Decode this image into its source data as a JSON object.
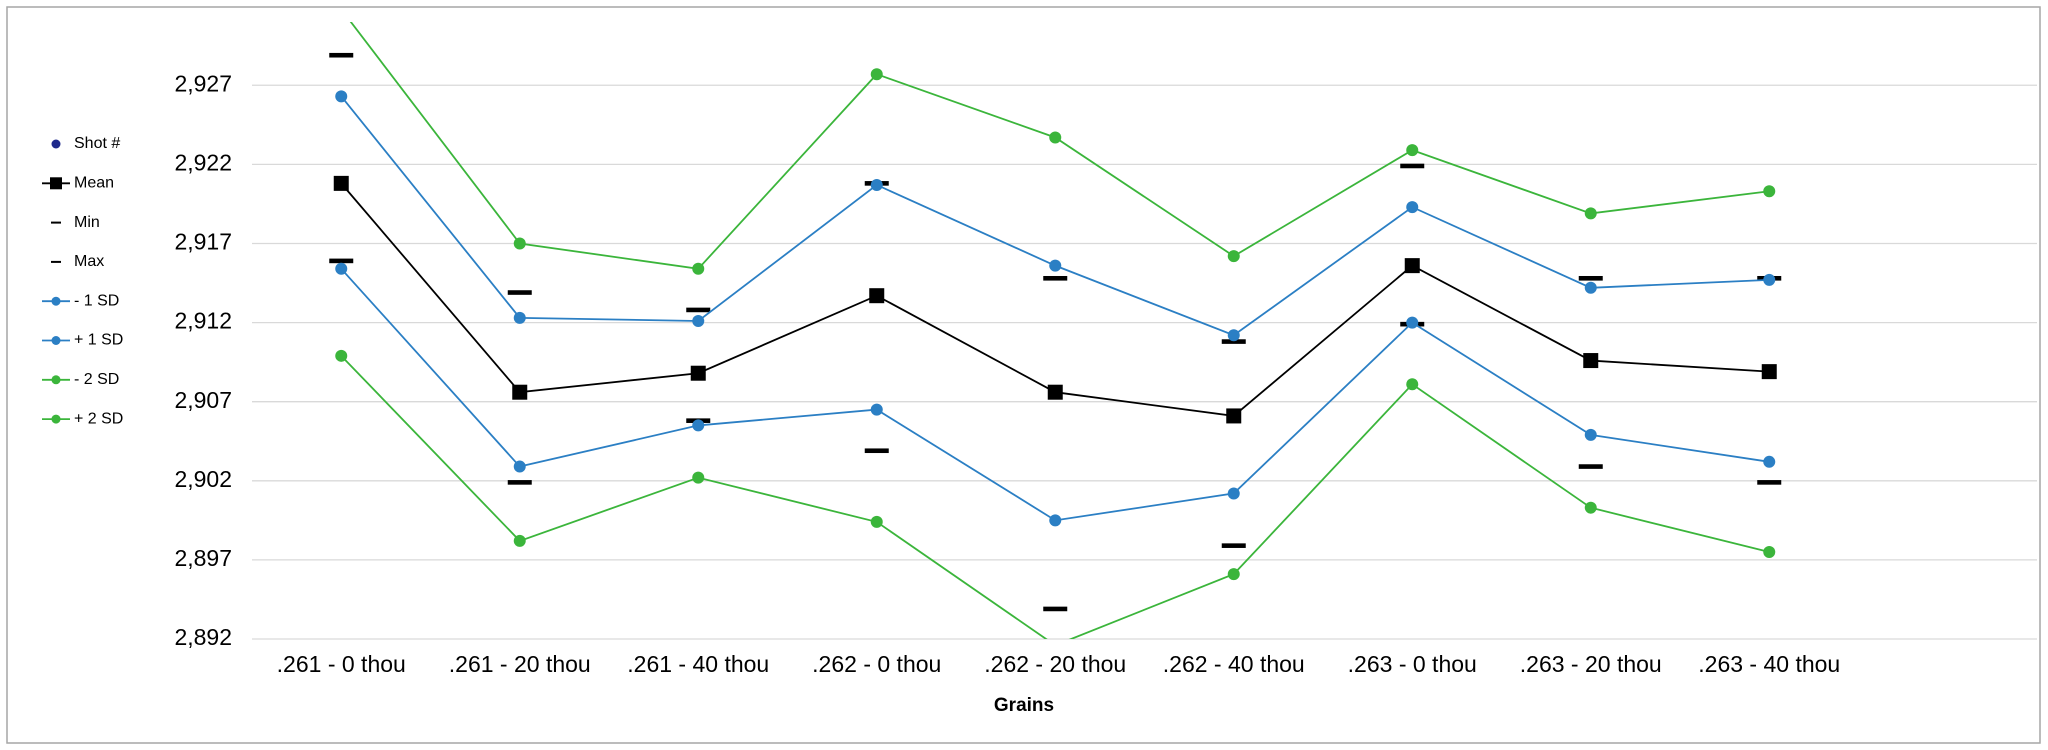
{
  "chart_data": {
    "type": "line",
    "x_label": "Grains",
    "categories": [
      ".261 - 0 thou",
      ".261 - 20 thou",
      ".261 - 40 thou",
      ".262 - 0 thou",
      ".262 - 20 thou",
      ".262 - 40 thou",
      ".263 - 0 thou",
      ".263 - 20 thou",
      ".263 - 40 thou",
      null
    ],
    "ylim": [
      2892,
      2931
    ],
    "yticks": [
      {
        "value": 2892,
        "label": "2,892"
      },
      {
        "value": 2897,
        "label": "2,897"
      },
      {
        "value": 2902,
        "label": "2,902"
      },
      {
        "value": 2907,
        "label": "2,907"
      },
      {
        "value": 2912,
        "label": "2,912"
      },
      {
        "value": 2917,
        "label": "2,917"
      },
      {
        "value": 2922,
        "label": "2,922"
      },
      {
        "value": 2927,
        "label": "2,927"
      }
    ],
    "grid": true,
    "legend": "left",
    "series": [
      {
        "name": "Shot #",
        "color": "#1f2a8c",
        "marker": "circle",
        "line": false,
        "values": [
          null,
          null,
          null,
          null,
          null,
          null,
          null,
          null,
          null,
          null
        ]
      },
      {
        "name": "Mean",
        "color": "#000000",
        "marker": "square",
        "line": true,
        "values": [
          2920.8,
          2907.6,
          2908.8,
          2913.7,
          2907.6,
          2906.1,
          2915.6,
          2909.6,
          2908.9,
          null
        ]
      },
      {
        "name": "Min",
        "color": "#000000",
        "marker": "dash",
        "line": false,
        "values": [
          2915.9,
          2901.9,
          2905.8,
          2903.9,
          2893.9,
          2897.9,
          2911.9,
          2902.9,
          2901.9,
          null
        ]
      },
      {
        "name": "Max",
        "color": "#000000",
        "marker": "dash",
        "line": false,
        "values": [
          2928.9,
          2913.9,
          2912.8,
          2920.8,
          2914.8,
          2910.8,
          2921.9,
          2914.8,
          2914.8,
          null
        ]
      },
      {
        "name": "- 1 SD",
        "color": "#2b7fc4",
        "marker": "circle",
        "line": true,
        "values": [
          2915.4,
          2902.9,
          2905.5,
          2906.5,
          2899.5,
          2901.2,
          2912.0,
          2904.9,
          2903.2,
          null
        ]
      },
      {
        "name": "+ 1 SD",
        "color": "#2b7fc4",
        "marker": "circle",
        "line": true,
        "values": [
          2926.3,
          2912.3,
          2912.1,
          2920.7,
          2915.6,
          2911.2,
          2919.3,
          2914.2,
          2914.7,
          null
        ]
      },
      {
        "name": "- 2 SD",
        "color": "#3bb53b",
        "marker": "circle",
        "line": true,
        "values": [
          2909.9,
          2898.2,
          2902.2,
          2899.4,
          2891.6,
          2896.1,
          2908.1,
          2900.3,
          2897.5,
          null
        ]
      },
      {
        "name": "+ 2 SD",
        "color": "#3bb53b",
        "marker": "circle",
        "line": true,
        "values": [
          2931.8,
          2917.0,
          2915.4,
          2927.7,
          2923.7,
          2916.2,
          2922.9,
          2918.9,
          2920.3,
          null
        ]
      }
    ]
  }
}
